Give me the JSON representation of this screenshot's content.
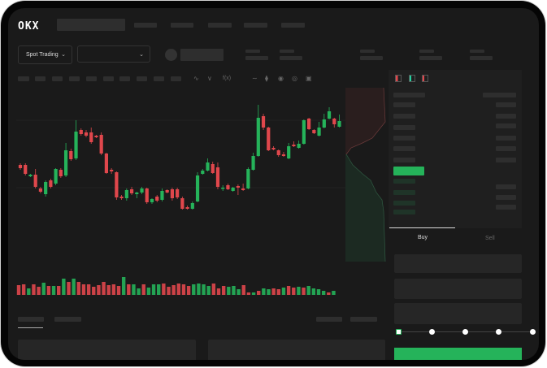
{
  "brand": {
    "logo_text": "OKX"
  },
  "header": {
    "trading_mode_label": "Spot Trading",
    "pair_selector_value": ""
  },
  "toolbar": {
    "icons": [
      "line-type-icon",
      "indicator-icon",
      "fx-icon",
      "trend-line-icon",
      "ruler-icon",
      "snapshot-icon",
      "settings-icon",
      "fullscreen-icon"
    ]
  },
  "order_book": {
    "view_icons": [
      "book-both-icon",
      "book-bids-icon",
      "book-asks-icon"
    ]
  },
  "trade_form": {
    "tabs": [
      {
        "label": "Buy",
        "active": true
      },
      {
        "label": "Sell",
        "active": false
      }
    ],
    "slider_percent": 0,
    "slider_stops": [
      0,
      25,
      50,
      75,
      100
    ]
  },
  "colors": {
    "up": "#25b35a",
    "down": "#e0474c",
    "background": "#1a1a1a",
    "panel": "#1f1f1f",
    "placeholder": "#2e2e2e"
  },
  "chart": {
    "type": "candlestick",
    "candles": [
      [
        97,
        99,
        91,
        93
      ],
      [
        97,
        99,
        84,
        86
      ],
      [
        83,
        86,
        82,
        85
      ],
      [
        85,
        92,
        68,
        70
      ],
      [
        68,
        70,
        62,
        64
      ],
      [
        61,
        78,
        58,
        76
      ],
      [
        78,
        80,
        68,
        70
      ],
      [
        74,
        93,
        72,
        92
      ],
      [
        91,
        93,
        81,
        83
      ],
      [
        84,
        124,
        82,
        115
      ],
      [
        114,
        117,
        102,
        104
      ],
      [
        105,
        152,
        103,
        138
      ],
      [
        140,
        142,
        133,
        135
      ],
      [
        137,
        140,
        131,
        133
      ],
      [
        137,
        143,
        123,
        125
      ],
      [
        133,
        134,
        130,
        131
      ],
      [
        134,
        137,
        109,
        111
      ],
      [
        111,
        112,
        86,
        87
      ],
      [
        91,
        93,
        86,
        89
      ],
      [
        88,
        89,
        54,
        57
      ],
      [
        58,
        60,
        54,
        56
      ],
      [
        56,
        68,
        53,
        66
      ],
      [
        67,
        70,
        60,
        62
      ],
      [
        61,
        64,
        56,
        63
      ],
      [
        63,
        70,
        61,
        68
      ],
      [
        68,
        69,
        49,
        51
      ],
      [
        51,
        56,
        49,
        55
      ],
      [
        58,
        60,
        51,
        53
      ],
      [
        54,
        68,
        52,
        65
      ],
      [
        66,
        67,
        62,
        63
      ],
      [
        67,
        69,
        53,
        56
      ],
      [
        67,
        69,
        55,
        57
      ],
      [
        56,
        58,
        42,
        43
      ],
      [
        45,
        47,
        42,
        43
      ],
      [
        43,
        52,
        42,
        50
      ],
      [
        52,
        88,
        51,
        84
      ],
      [
        86,
        92,
        85,
        90
      ],
      [
        90,
        105,
        89,
        100
      ],
      [
        98,
        101,
        86,
        87
      ],
      [
        94,
        100,
        67,
        70
      ],
      [
        68,
        72,
        65,
        69
      ],
      [
        72,
        74,
        66,
        67
      ],
      [
        65,
        70,
        64,
        69
      ],
      [
        71,
        73,
        60,
        69
      ],
      [
        68,
        74,
        65,
        66
      ],
      [
        68,
        94,
        67,
        92
      ],
      [
        91,
        112,
        90,
        108
      ],
      [
        108,
        171,
        107,
        155
      ],
      [
        157,
        160,
        140,
        143
      ],
      [
        143,
        144,
        114,
        115
      ],
      [
        118,
        120,
        115,
        116
      ],
      [
        115,
        116,
        107,
        109
      ],
      [
        110,
        113,
        107,
        108
      ],
      [
        105,
        124,
        104,
        120
      ],
      [
        122,
        126,
        119,
        120
      ],
      [
        118,
        127,
        117,
        123
      ],
      [
        123,
        153,
        122,
        152
      ],
      [
        154,
        155,
        140,
        141
      ],
      [
        140,
        141,
        135,
        136
      ],
      [
        133,
        150,
        132,
        143
      ],
      [
        143,
        160,
        142,
        153
      ],
      [
        154,
        168,
        153,
        163
      ],
      [
        154,
        155,
        143,
        147
      ],
      [
        144,
        159,
        143,
        151
      ]
    ],
    "volume": [
      [
        12,
        "d"
      ],
      [
        13,
        "d"
      ],
      [
        8,
        "u"
      ],
      [
        13,
        "d"
      ],
      [
        10,
        "d"
      ],
      [
        15,
        "u"
      ],
      [
        11,
        "d"
      ],
      [
        11,
        "u"
      ],
      [
        11,
        "d"
      ],
      [
        20,
        "u"
      ],
      [
        16,
        "d"
      ],
      [
        20,
        "u"
      ],
      [
        16,
        "d"
      ],
      [
        13,
        "d"
      ],
      [
        13,
        "d"
      ],
      [
        10,
        "d"
      ],
      [
        12,
        "d"
      ],
      [
        16,
        "d"
      ],
      [
        12,
        "d"
      ],
      [
        13,
        "d"
      ],
      [
        11,
        "d"
      ],
      [
        22,
        "u"
      ],
      [
        13,
        "d"
      ],
      [
        13,
        "u"
      ],
      [
        8,
        "u"
      ],
      [
        13,
        "d"
      ],
      [
        9,
        "u"
      ],
      [
        13,
        "u"
      ],
      [
        13,
        "u"
      ],
      [
        14,
        "d"
      ],
      [
        10,
        "d"
      ],
      [
        12,
        "d"
      ],
      [
        14,
        "d"
      ],
      [
        13,
        "d"
      ],
      [
        11,
        "d"
      ],
      [
        13,
        "u"
      ],
      [
        14,
        "u"
      ],
      [
        13,
        "u"
      ],
      [
        11,
        "u"
      ],
      [
        14,
        "d"
      ],
      [
        8,
        "d"
      ],
      [
        11,
        "d"
      ],
      [
        10,
        "u"
      ],
      [
        11,
        "u"
      ],
      [
        7,
        "u"
      ],
      [
        12,
        "d"
      ],
      [
        3,
        "d"
      ],
      [
        3,
        "u"
      ],
      [
        5,
        "d"
      ],
      [
        8,
        "u"
      ],
      [
        7,
        "u"
      ],
      [
        8,
        "d"
      ],
      [
        7,
        "d"
      ],
      [
        9,
        "u"
      ],
      [
        11,
        "d"
      ],
      [
        9,
        "d"
      ],
      [
        10,
        "u"
      ],
      [
        9,
        "d"
      ],
      [
        11,
        "u"
      ],
      [
        8,
        "u"
      ],
      [
        7,
        "u"
      ],
      [
        5,
        "u"
      ],
      [
        3,
        "d"
      ],
      [
        5,
        "u"
      ]
    ]
  }
}
